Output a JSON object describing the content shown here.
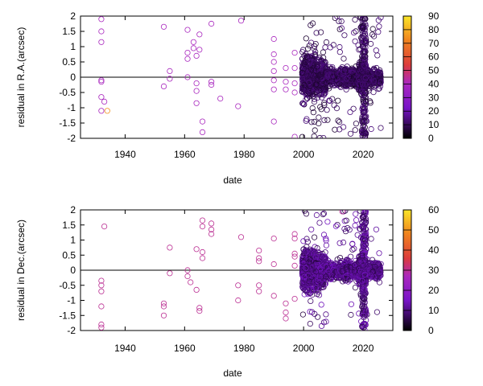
{
  "chart_data": [
    {
      "type": "scatter",
      "xlabel": "date",
      "ylabel": "residual in R.A.(arcsec)",
      "xlim": [
        1925,
        2030
      ],
      "ylim": [
        -2,
        2
      ],
      "xticks": [
        "1940",
        "1960",
        "1980",
        "2000",
        "2020"
      ],
      "yticks": [
        "-2",
        "-1.5",
        "-1",
        "-0.5",
        "0",
        "0.5",
        "1",
        "1.5",
        "2"
      ],
      "colorbar": {
        "min": 0,
        "max": 90,
        "ticks": [
          "0",
          "10",
          "20",
          "30",
          "40",
          "50",
          "60",
          "70",
          "80",
          "90"
        ]
      },
      "series": [
        {
          "x": 1932,
          "y": 1.9,
          "c": 40
        },
        {
          "x": 1932,
          "y": 1.5,
          "c": 40
        },
        {
          "x": 1932,
          "y": 1.15,
          "c": 40
        },
        {
          "x": 1932,
          "y": -0.1,
          "c": 40
        },
        {
          "x": 1932,
          "y": -0.15,
          "c": 40
        },
        {
          "x": 1932,
          "y": -0.65,
          "c": 40
        },
        {
          "x": 1932,
          "y": -1.1,
          "c": 40
        },
        {
          "x": 1933,
          "y": -0.8,
          "c": 40
        },
        {
          "x": 1934,
          "y": -1.1,
          "c": 75
        },
        {
          "x": 1953,
          "y": 1.65,
          "c": 40
        },
        {
          "x": 1953,
          "y": -0.3,
          "c": 40
        },
        {
          "x": 1955,
          "y": 0.2,
          "c": 40
        },
        {
          "x": 1955,
          "y": -0.05,
          "c": 40
        },
        {
          "x": 1961,
          "y": 1.55,
          "c": 40
        },
        {
          "x": 1961,
          "y": 0.8,
          "c": 40
        },
        {
          "x": 1961,
          "y": 0.6,
          "c": 40
        },
        {
          "x": 1961,
          "y": 0.0,
          "c": 40
        },
        {
          "x": 1963,
          "y": 1.15,
          "c": 40
        },
        {
          "x": 1963,
          "y": 0.95,
          "c": 40
        },
        {
          "x": 1964,
          "y": 0.7,
          "c": 40
        },
        {
          "x": 1964,
          "y": -0.2,
          "c": 40
        },
        {
          "x": 1964,
          "y": -0.45,
          "c": 40
        },
        {
          "x": 1964,
          "y": -0.85,
          "c": 40
        },
        {
          "x": 1965,
          "y": 1.4,
          "c": 40
        },
        {
          "x": 1965,
          "y": 0.9,
          "c": 40
        },
        {
          "x": 1966,
          "y": -1.45,
          "c": 40
        },
        {
          "x": 1966,
          "y": -1.8,
          "c": 40
        },
        {
          "x": 1969,
          "y": 1.75,
          "c": 40
        },
        {
          "x": 1969,
          "y": -0.15,
          "c": 40
        },
        {
          "x": 1969,
          "y": -0.25,
          "c": 40
        },
        {
          "x": 1972,
          "y": -0.7,
          "c": 40
        },
        {
          "x": 1978,
          "y": -0.95,
          "c": 40
        },
        {
          "x": 1979,
          "y": 1.85,
          "c": 40
        },
        {
          "x": 1990,
          "y": 1.25,
          "c": 40
        },
        {
          "x": 1990,
          "y": 0.75,
          "c": 40
        },
        {
          "x": 1990,
          "y": 0.5,
          "c": 40
        },
        {
          "x": 1990,
          "y": 0.2,
          "c": 40
        },
        {
          "x": 1990,
          "y": -0.1,
          "c": 40
        },
        {
          "x": 1990,
          "y": -0.4,
          "c": 40
        },
        {
          "x": 1990,
          "y": -1.45,
          "c": 40
        },
        {
          "x": 1994,
          "y": 0.3,
          "c": 40
        },
        {
          "x": 1994,
          "y": -0.15,
          "c": 40
        },
        {
          "x": 1994,
          "y": -0.4,
          "c": 40
        },
        {
          "x": 1997,
          "y": 0.8,
          "c": 40
        },
        {
          "x": 1997,
          "y": 0.3,
          "c": 40
        },
        {
          "x": 1997,
          "y": -0.2,
          "c": 40
        },
        {
          "x": 1997,
          "y": -0.5,
          "c": 40
        },
        {
          "x": 1997,
          "y": -1.95,
          "c": 40
        }
      ]
    },
    {
      "type": "scatter",
      "xlabel": "date",
      "ylabel": "residual in Dec.(arcsec)",
      "xlim": [
        1925,
        2030
      ],
      "ylim": [
        -2,
        2
      ],
      "xticks": [
        "1940",
        "1960",
        "1980",
        "2000",
        "2020"
      ],
      "yticks": [
        "-2",
        "-1.5",
        "-1",
        "-0.5",
        "0",
        "0.5",
        "1",
        "1.5",
        "2"
      ],
      "colorbar": {
        "min": 0,
        "max": 60,
        "ticks": [
          "0",
          "10",
          "20",
          "30",
          "40",
          "50",
          "60"
        ]
      },
      "series": [
        {
          "x": 1932,
          "y": -0.35,
          "c": 30
        },
        {
          "x": 1932,
          "y": -0.5,
          "c": 30
        },
        {
          "x": 1932,
          "y": -0.7,
          "c": 30
        },
        {
          "x": 1932,
          "y": -1.2,
          "c": 30
        },
        {
          "x": 1932,
          "y": -1.8,
          "c": 30
        },
        {
          "x": 1932,
          "y": -1.9,
          "c": 30
        },
        {
          "x": 1933,
          "y": 1.45,
          "c": 30
        },
        {
          "x": 1953,
          "y": -1.1,
          "c": 30
        },
        {
          "x": 1953,
          "y": -1.2,
          "c": 30
        },
        {
          "x": 1953,
          "y": -1.5,
          "c": 30
        },
        {
          "x": 1955,
          "y": 0.75,
          "c": 30
        },
        {
          "x": 1955,
          "y": -0.1,
          "c": 30
        },
        {
          "x": 1961,
          "y": 0.0,
          "c": 30
        },
        {
          "x": 1961,
          "y": -0.2,
          "c": 30
        },
        {
          "x": 1962,
          "y": -0.4,
          "c": 30
        },
        {
          "x": 1964,
          "y": 0.7,
          "c": 30
        },
        {
          "x": 1964,
          "y": -0.65,
          "c": 30
        },
        {
          "x": 1965,
          "y": -1.25,
          "c": 30
        },
        {
          "x": 1965,
          "y": -1.35,
          "c": 30
        },
        {
          "x": 1966,
          "y": 1.65,
          "c": 30
        },
        {
          "x": 1966,
          "y": 1.45,
          "c": 30
        },
        {
          "x": 1966,
          "y": 0.6,
          "c": 30
        },
        {
          "x": 1966,
          "y": 0.4,
          "c": 30
        },
        {
          "x": 1969,
          "y": 1.55,
          "c": 30
        },
        {
          "x": 1969,
          "y": 1.35,
          "c": 30
        },
        {
          "x": 1969,
          "y": 1.2,
          "c": 30
        },
        {
          "x": 1978,
          "y": -0.5,
          "c": 30
        },
        {
          "x": 1978,
          "y": -1.0,
          "c": 30
        },
        {
          "x": 1979,
          "y": 1.1,
          "c": 30
        },
        {
          "x": 1985,
          "y": 0.65,
          "c": 30
        },
        {
          "x": 1985,
          "y": 0.4,
          "c": 30
        },
        {
          "x": 1985,
          "y": 0.3,
          "c": 30
        },
        {
          "x": 1985,
          "y": -0.5,
          "c": 30
        },
        {
          "x": 1985,
          "y": -0.7,
          "c": 30
        },
        {
          "x": 1990,
          "y": 1.05,
          "c": 30
        },
        {
          "x": 1990,
          "y": 0.2,
          "c": 30
        },
        {
          "x": 1990,
          "y": -0.85,
          "c": 30
        },
        {
          "x": 1994,
          "y": -1.1,
          "c": 30
        },
        {
          "x": 1994,
          "y": -1.4,
          "c": 30
        },
        {
          "x": 1994,
          "y": -1.6,
          "c": 30
        },
        {
          "x": 1997,
          "y": 1.2,
          "c": 30
        },
        {
          "x": 1997,
          "y": 1.05,
          "c": 30
        },
        {
          "x": 1997,
          "y": 0.55,
          "c": 30
        },
        {
          "x": 1997,
          "y": 0.45,
          "c": 30
        },
        {
          "x": 1997,
          "y": 0.15,
          "c": 30
        },
        {
          "x": 1997,
          "y": -0.95,
          "c": 30
        },
        {
          "x": 2013,
          "y": 1.95,
          "c": 30
        }
      ]
    }
  ]
}
